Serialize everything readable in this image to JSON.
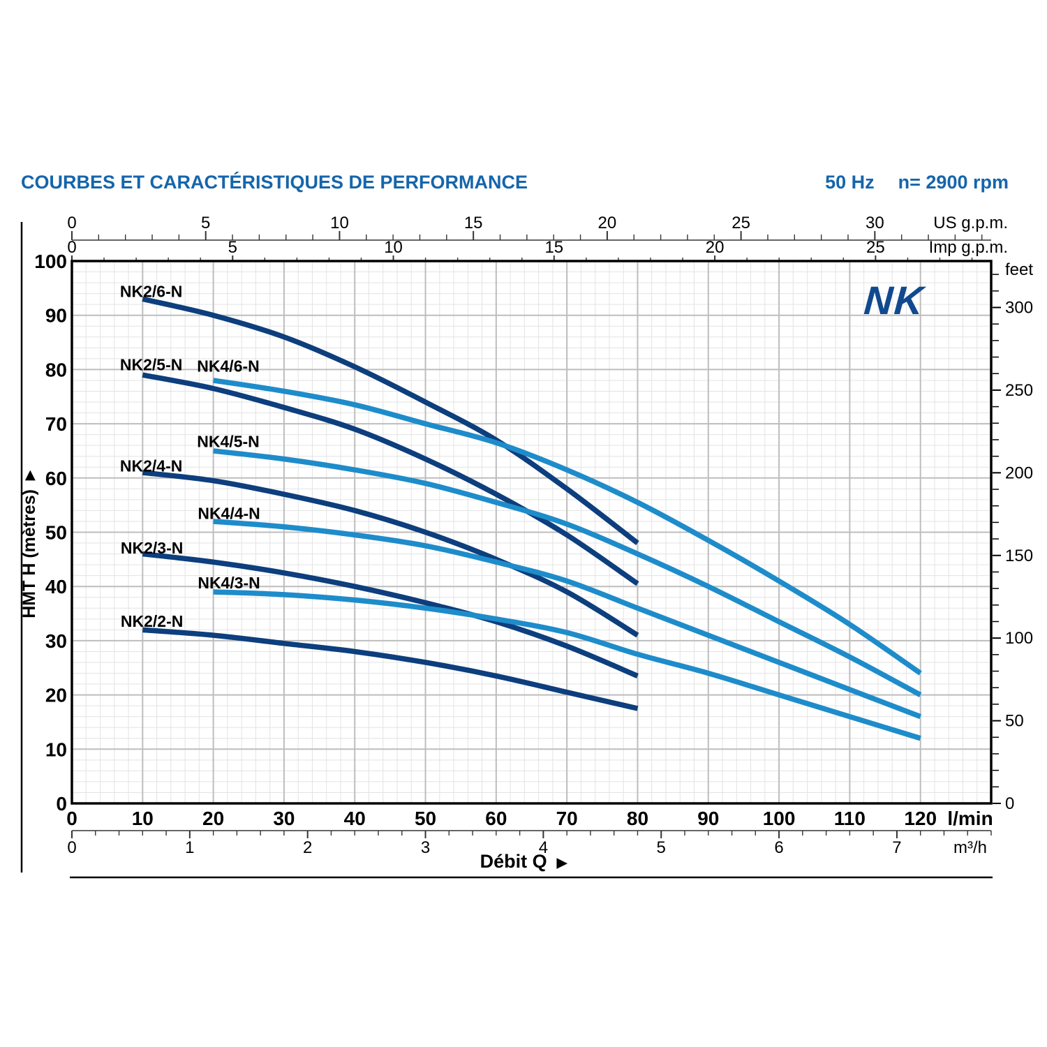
{
  "header": {
    "title": "COURBES ET CARACTÉRISTIQUES DE PERFORMANCE",
    "frequency": "50 Hz",
    "speed": "n= 2900 rpm"
  },
  "logo_text": "NK",
  "chart_data": {
    "type": "line",
    "x_primary": {
      "label": "l/min",
      "min": 0,
      "max": 130,
      "labeled_step": 10,
      "labeled_max": 120,
      "minor_step": 2
    },
    "y_primary": {
      "label": "HMT H (mètres)",
      "min": 0,
      "max": 100,
      "labeled_step": 10,
      "minor_step": 2
    },
    "x_top_axes": [
      {
        "label": "US g.p.m.",
        "lmin_per_unit": 3.785,
        "labeled_ticks": [
          0,
          5,
          10,
          15,
          20,
          25,
          30
        ],
        "minor_step": 1,
        "max_tick": 34
      },
      {
        "label": "Imp g.p.m.",
        "lmin_per_unit": 4.546,
        "labeled_ticks": [
          0,
          5,
          10,
          15,
          20,
          25
        ],
        "minor_step": 1,
        "max_tick": 28
      }
    ],
    "x_bottom_axis": {
      "label": "m³/h",
      "lmin_per_unit": 16.6667,
      "labeled_ticks": [
        0,
        1,
        2,
        3,
        4,
        5,
        6,
        7
      ],
      "minor_step": 0.2,
      "max_tick": 7.8
    },
    "y_right_axis": {
      "label": "feet",
      "m_per_unit": 0.3048,
      "labeled_step": 50,
      "minor_step": 10,
      "max_tick": 320
    },
    "x_axis_title": "Débit Q",
    "arrow": "▶",
    "grid": "on",
    "colors": {
      "dark": "#0d3e7d",
      "light": "#1e8cca",
      "grid_minor": "#e3e3e3",
      "grid_major": "#bdbdbd",
      "frame": "#000000",
      "ruler": "#333333",
      "header_blue": "#1565ab",
      "logo_blue": "#11498f"
    },
    "series": [
      {
        "name": "NK2/6-N",
        "color_key": "dark",
        "label_at": [
          6.8,
          94.4
        ],
        "points_q_lmin_h_m": [
          [
            10,
            93
          ],
          [
            20,
            90
          ],
          [
            30,
            86
          ],
          [
            40,
            80.5
          ],
          [
            50,
            74
          ],
          [
            60,
            67
          ],
          [
            70,
            58
          ],
          [
            80,
            48
          ]
        ]
      },
      {
        "name": "NK2/5-N",
        "color_key": "dark",
        "label_at": [
          6.8,
          80.9
        ],
        "points_q_lmin_h_m": [
          [
            10,
            79
          ],
          [
            20,
            76.5
          ],
          [
            30,
            73
          ],
          [
            40,
            69
          ],
          [
            50,
            63.5
          ],
          [
            60,
            57
          ],
          [
            70,
            49.5
          ],
          [
            80,
            40.5
          ]
        ]
      },
      {
        "name": "NK2/4-N",
        "color_key": "dark",
        "label_at": [
          6.8,
          62.2
        ],
        "points_q_lmin_h_m": [
          [
            10,
            61
          ],
          [
            20,
            59.5
          ],
          [
            30,
            57
          ],
          [
            40,
            54
          ],
          [
            50,
            50
          ],
          [
            60,
            45
          ],
          [
            70,
            39
          ],
          [
            80,
            31
          ]
        ]
      },
      {
        "name": "NK2/3-N",
        "color_key": "dark",
        "label_at": [
          6.9,
          47.1
        ],
        "points_q_lmin_h_m": [
          [
            10,
            46
          ],
          [
            20,
            44.5
          ],
          [
            30,
            42.5
          ],
          [
            40,
            40
          ],
          [
            50,
            37
          ],
          [
            60,
            33.5
          ],
          [
            70,
            29
          ],
          [
            80,
            23.5
          ]
        ]
      },
      {
        "name": "NK2/2-N",
        "color_key": "dark",
        "label_at": [
          6.9,
          33.6
        ],
        "points_q_lmin_h_m": [
          [
            10,
            32
          ],
          [
            20,
            31
          ],
          [
            30,
            29.5
          ],
          [
            40,
            28
          ],
          [
            50,
            26
          ],
          [
            60,
            23.5
          ],
          [
            70,
            20.5
          ],
          [
            80,
            17.5
          ]
        ]
      },
      {
        "name": "NK4/6-N",
        "color_key": "light",
        "label_at": [
          17.7,
          80.6
        ],
        "points_q_lmin_h_m": [
          [
            20,
            78
          ],
          [
            30,
            76
          ],
          [
            40,
            73.5
          ],
          [
            50,
            70
          ],
          [
            60,
            66.5
          ],
          [
            70,
            61.5
          ],
          [
            80,
            55.5
          ],
          [
            90,
            48.5
          ],
          [
            100,
            41
          ],
          [
            110,
            33
          ],
          [
            120,
            24
          ]
        ]
      },
      {
        "name": "NK4/5-N",
        "color_key": "light",
        "label_at": [
          17.7,
          66.7
        ],
        "points_q_lmin_h_m": [
          [
            20,
            65
          ],
          [
            30,
            63.5
          ],
          [
            40,
            61.5
          ],
          [
            50,
            59
          ],
          [
            60,
            55.5
          ],
          [
            70,
            51.5
          ],
          [
            80,
            46
          ],
          [
            90,
            40
          ],
          [
            100,
            33.5
          ],
          [
            110,
            27
          ],
          [
            120,
            20
          ]
        ]
      },
      {
        "name": "NK4/4-N",
        "color_key": "light",
        "label_at": [
          17.8,
          53.5
        ],
        "points_q_lmin_h_m": [
          [
            20,
            52
          ],
          [
            30,
            51
          ],
          [
            40,
            49.5
          ],
          [
            50,
            47.5
          ],
          [
            60,
            44.5
          ],
          [
            70,
            41
          ],
          [
            80,
            36
          ],
          [
            90,
            31
          ],
          [
            100,
            26
          ],
          [
            110,
            21
          ],
          [
            120,
            16
          ]
        ]
      },
      {
        "name": "NK4/3-N",
        "color_key": "light",
        "label_at": [
          17.8,
          40.7
        ],
        "points_q_lmin_h_m": [
          [
            20,
            39
          ],
          [
            30,
            38.5
          ],
          [
            40,
            37.5
          ],
          [
            50,
            36
          ],
          [
            60,
            34
          ],
          [
            70,
            31.5
          ],
          [
            80,
            27.5
          ],
          [
            90,
            24
          ],
          [
            100,
            20
          ],
          [
            110,
            16
          ],
          [
            120,
            12
          ]
        ]
      }
    ]
  }
}
